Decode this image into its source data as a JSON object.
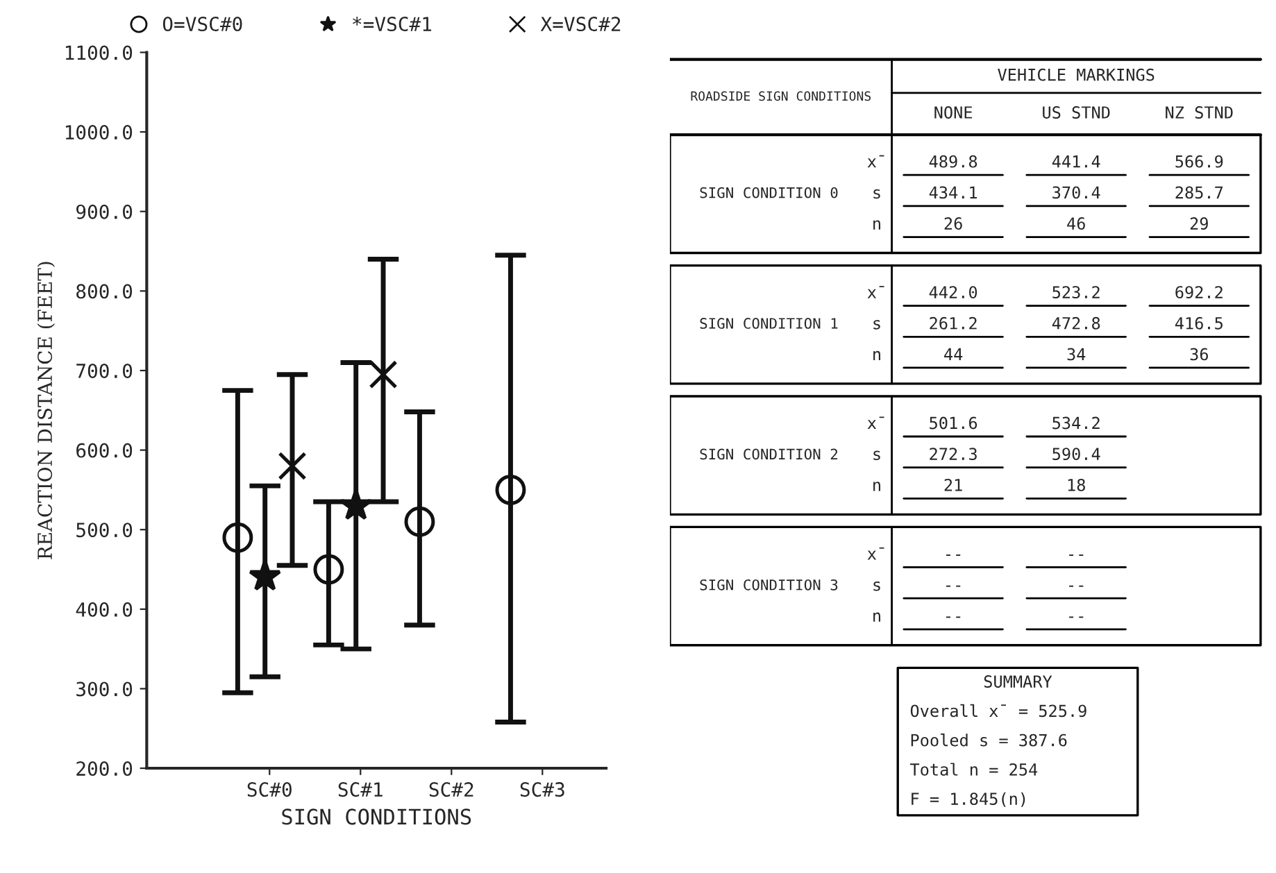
{
  "chart_data": [
    {
      "type": "scatter",
      "ylabel": "REACTION DISTANCE (FEET)",
      "xlabel": "SIGN CONDITIONS",
      "categories": [
        "SC#0",
        "SC#1",
        "SC#2",
        "SC#3"
      ],
      "ylim": [
        200,
        1100
      ],
      "yticks": [
        {
          "value": 200,
          "label": "200.0"
        },
        {
          "value": 300,
          "label": "300.0"
        },
        {
          "value": 400,
          "label": "400.0"
        },
        {
          "value": 500,
          "label": "500.0"
        },
        {
          "value": 600,
          "label": "600.0"
        },
        {
          "value": 700,
          "label": "700.0"
        },
        {
          "value": 800,
          "label": "800.0"
        },
        {
          "value": 900,
          "label": "900.0"
        },
        {
          "value": 1000,
          "label": "1000.0"
        },
        {
          "value": 1100,
          "label": "1100.0"
        }
      ],
      "legend": "top",
      "grid": false,
      "series": [
        {
          "name": "O=VSC#0",
          "color": "#111111",
          "marker": "circle",
          "values": [
            490,
            450,
            510,
            550
          ],
          "errors": [
            [
              295,
              675
            ],
            [
              355,
              535
            ],
            [
              380,
              648
            ],
            [
              258,
              845
            ]
          ]
        },
        {
          "name": "*=VSC#1",
          "color": "#111111",
          "marker": "star",
          "values": [
            441,
            530,
            null,
            null
          ],
          "errors": [
            [
              315,
              555
            ],
            [
              350,
              710
            ],
            null,
            null
          ]
        },
        {
          "name": "X=VSC#2",
          "color": "#111111",
          "marker": "cross",
          "values": [
            580,
            695,
            null,
            null
          ],
          "errors": [
            [
              455,
              695
            ],
            [
              535,
              840
            ],
            null,
            null
          ]
        }
      ]
    },
    {
      "type": "other",
      "data_labels": true,
      "title": "VEHICLE MARKINGS",
      "ylabel": "ROADSIDE SIGN CONDITIONS",
      "categories": [
        "NONE",
        "US STND",
        "NZ STND"
      ],
      "series": [
        {
          "name": "x̄",
          "values": [
            489.8,
            441.4,
            566.9
          ]
        },
        {
          "name": "s",
          "values": [
            434.1,
            370.4,
            285.7
          ]
        },
        {
          "name": "n",
          "values": [
            26,
            46,
            29
          ]
        },
        {
          "name": "x̄",
          "values": [
            442.0,
            523.2,
            692.2
          ],
          "value_labels": [
            "442.0",
            "523.2",
            "692.2"
          ]
        },
        {
          "name": "s",
          "values": [
            261.2,
            472.8,
            416.5
          ]
        },
        {
          "name": "n",
          "values": [
            44,
            34,
            36
          ]
        },
        {
          "name": "x̄",
          "values": [
            501.6,
            534.2,
            null
          ]
        },
        {
          "name": "s",
          "values": [
            272.3,
            590.4,
            null
          ]
        },
        {
          "name": "n",
          "values": [
            21,
            18,
            null
          ]
        },
        {
          "name": "x̄",
          "values": [
            null,
            null,
            null
          ],
          "value_labels": [
            "--",
            "--",
            null
          ]
        },
        {
          "name": "s",
          "values": [
            null,
            null,
            null
          ],
          "value_labels": [
            "--",
            "--",
            null
          ]
        },
        {
          "name": "n",
          "values": [
            null,
            null,
            null
          ],
          "value_labels": [
            "--",
            "--",
            null
          ]
        }
      ],
      "annotations": [
        "SIGN CONDITION 0",
        "SIGN CONDITION 1",
        "SIGN CONDITION 2",
        "SIGN CONDITION 3",
        "SUMMARY",
        "Overall x̄ = 525.9",
        "Pooled s = 387.6",
        "Total n = 254",
        "F = 1.845(n)"
      ]
    }
  ]
}
